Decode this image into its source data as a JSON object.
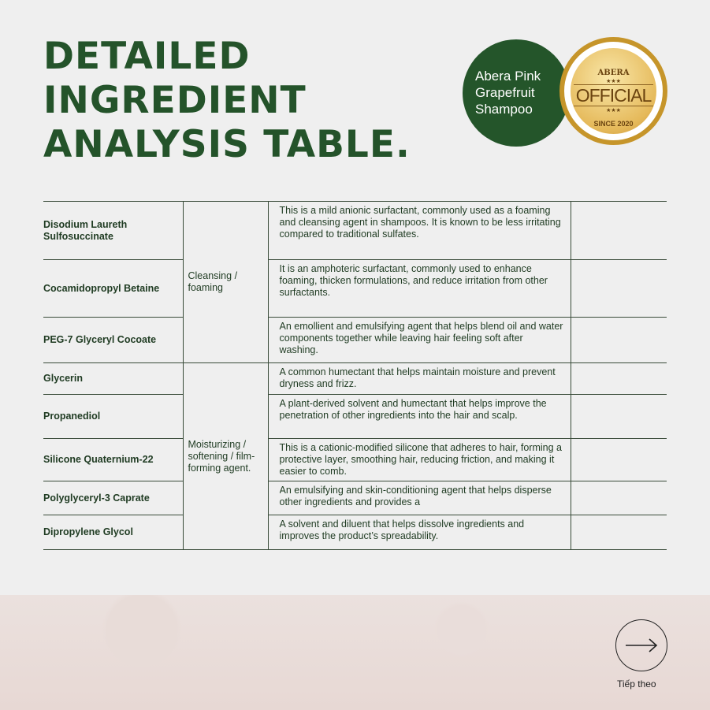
{
  "title": [
    "DETAILED",
    "INGREDIENT",
    "ANALYSIS TABLE."
  ],
  "product": [
    "Abera Pink",
    "Grapefruit",
    "Shampoo"
  ],
  "badge": {
    "brand": "ABERA",
    "stars": "★★★",
    "official": "OFFICIAL",
    "since": "SINCE 2020"
  },
  "rows": [
    {
      "name": "Disodium Laureth Sulfosuccinate",
      "desc": "This is a mild anionic surfactant, commonly used as a foaming and cleansing agent in shampoos. It is known to be less irritating compared to traditional sulfates."
    },
    {
      "name": "Cocamidopropyl Betaine",
      "desc": "It is an amphoteric surfactant, commonly used to enhance foaming, thicken formulations, and reduce irritation from other surfactants."
    },
    {
      "name": "PEG-7 Glyceryl Cocoate",
      "desc": "An emollient and emulsifying agent that helps blend oil and water components together while leaving hair feeling soft after washing."
    },
    {
      "name": "Glycerin",
      "desc": "A common humectant that helps maintain moisture and prevent dryness and frizz."
    },
    {
      "name": "Propanediol",
      "desc": "A plant-derived solvent and humectant that helps improve the penetration of other ingredients into the hair and scalp."
    },
    {
      "name": "Silicone Quaternium-22",
      "desc": "This is a cationic-modified silicone that adheres to hair, forming a protective layer, smoothing hair, reducing friction, and making it easier to comb."
    },
    {
      "name": "Polyglyceryl-3 Caprate",
      "desc": "An emulsifying and skin-conditioning agent that helps disperse other ingredients and provides a"
    },
    {
      "name": "Dipropylene Glycol",
      "desc": "A solvent and diluent that helps dissolve ingredients and improves the product’s spreadability."
    }
  ],
  "groups": [
    "Cleansing / foaming",
    "Moisturizing / softening / film-forming agent."
  ],
  "next_label": "Tiếp theo",
  "icons": {
    "next": "arrow-right-icon"
  },
  "colors": {
    "brand_green": "#24552a",
    "gold": "#c6952a"
  }
}
